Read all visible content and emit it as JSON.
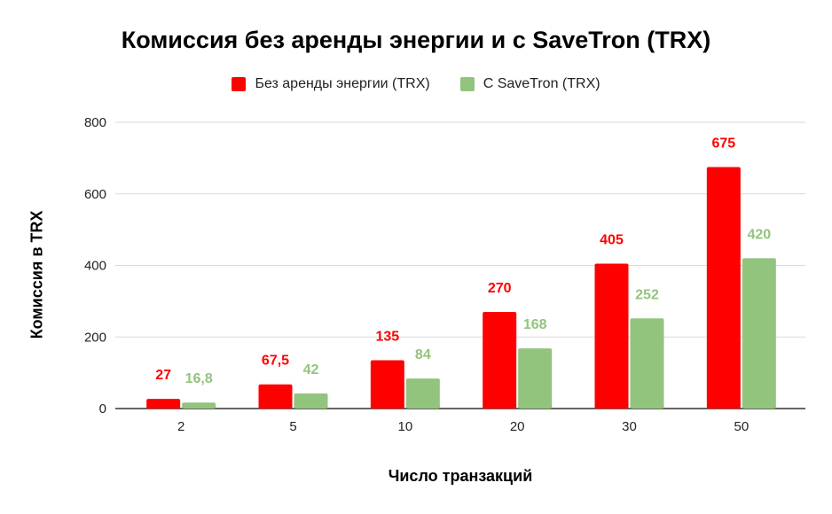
{
  "chart_data": {
    "type": "bar",
    "title": "Комиссия без аренды энергии и с SaveTron (TRX)",
    "xlabel": "Число транзакций",
    "ylabel": "Комиссия в TRX",
    "categories": [
      "2",
      "5",
      "10",
      "20",
      "30",
      "50"
    ],
    "ylim": [
      0,
      800
    ],
    "yticks": [
      0,
      200,
      400,
      600,
      800
    ],
    "grid": true,
    "legend_position": "top",
    "series": [
      {
        "name": "Без аренды энергии (TRX)",
        "color": "#ff0000",
        "values": [
          27,
          67.5,
          135,
          270,
          405,
          675
        ],
        "labels": [
          "27",
          "67,5",
          "135",
          "270",
          "405",
          "675"
        ]
      },
      {
        "name": "С SaveTron (TRX)",
        "color": "#93c47d",
        "values": [
          16.8,
          42,
          84,
          168,
          252,
          420
        ],
        "labels": [
          "16,8",
          "42",
          "84",
          "168",
          "252",
          "420"
        ]
      }
    ]
  }
}
